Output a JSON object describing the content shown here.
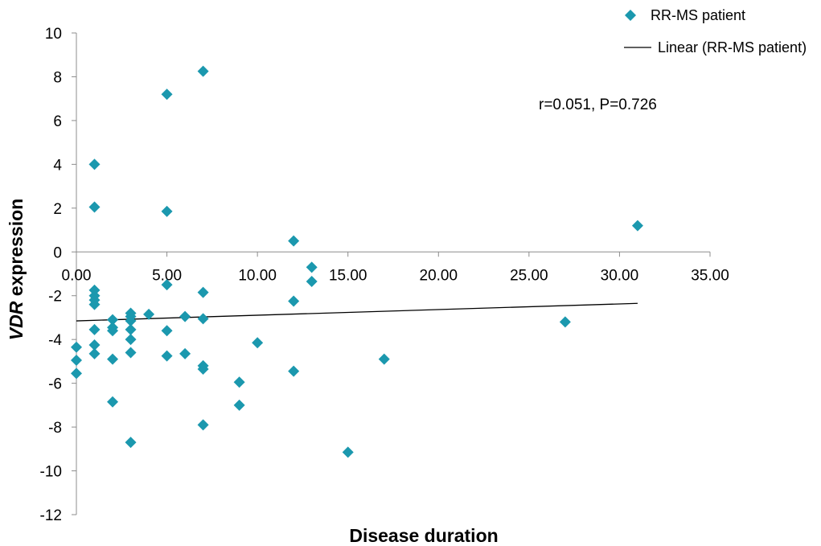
{
  "chart_data": {
    "type": "scatter",
    "xlabel": "Disease duration",
    "ylabel_italic": "VDR",
    "ylabel_rest": " expression",
    "xlim": [
      0,
      35
    ],
    "ylim": [
      -12,
      10
    ],
    "x_ticks": [
      0,
      5,
      10,
      15,
      20,
      25,
      30,
      35
    ],
    "x_tick_labels": [
      "0.00",
      "5.00",
      "10.00",
      "15.00",
      "20.00",
      "25.00",
      "30.00",
      "35.00"
    ],
    "y_ticks": [
      10,
      8,
      6,
      4,
      2,
      0,
      -2,
      -4,
      -6,
      -8,
      -10,
      -12
    ],
    "y_tick_labels": [
      "10",
      "8",
      "6",
      "4",
      "2",
      "0",
      "-2",
      "-4",
      "-6",
      "-8",
      "-10",
      "-12"
    ],
    "grid": false,
    "legend_position": "top-right",
    "annotation": "r=0.051,  P=0.726",
    "series": [
      {
        "name": "RR-MS patient",
        "color": "#1B98AE",
        "marker": "diamond",
        "points": [
          [
            0,
            -4.35
          ],
          [
            0,
            -4.95
          ],
          [
            0,
            -5.55
          ],
          [
            1,
            4.0
          ],
          [
            1,
            2.05
          ],
          [
            1,
            -1.75
          ],
          [
            1,
            -2.0
          ],
          [
            1,
            -2.2
          ],
          [
            1,
            -2.4
          ],
          [
            1,
            -3.55
          ],
          [
            1,
            -4.25
          ],
          [
            1,
            -4.65
          ],
          [
            2,
            -3.1
          ],
          [
            2,
            -3.45
          ],
          [
            2,
            -3.6
          ],
          [
            2,
            -4.9
          ],
          [
            2,
            -6.85
          ],
          [
            3,
            -2.8
          ],
          [
            3,
            -2.95
          ],
          [
            3,
            -3.15
          ],
          [
            3,
            -3.55
          ],
          [
            3,
            -4.0
          ],
          [
            3,
            -4.6
          ],
          [
            3,
            -8.7
          ],
          [
            4,
            -2.85
          ],
          [
            5,
            7.2
          ],
          [
            5,
            1.85
          ],
          [
            5,
            -1.5
          ],
          [
            5,
            -3.6
          ],
          [
            5,
            -4.75
          ],
          [
            6,
            -2.95
          ],
          [
            6,
            -4.65
          ],
          [
            7,
            8.25
          ],
          [
            7,
            -1.85
          ],
          [
            7,
            -3.05
          ],
          [
            7,
            -5.2
          ],
          [
            7,
            -5.35
          ],
          [
            7,
            -7.9
          ],
          [
            9,
            -5.95
          ],
          [
            9,
            -7.0
          ],
          [
            10,
            -4.15
          ],
          [
            12,
            0.5
          ],
          [
            12,
            -2.25
          ],
          [
            12,
            -5.45
          ],
          [
            13,
            -0.7
          ],
          [
            13,
            -1.35
          ],
          [
            15,
            -9.15
          ],
          [
            17,
            -4.9
          ],
          [
            27,
            -3.2
          ],
          [
            31,
            1.2
          ]
        ]
      },
      {
        "name": "Linear (RR-MS patient)",
        "color": "#000000",
        "type": "line",
        "points": [
          [
            0,
            -3.15
          ],
          [
            31,
            -2.35
          ]
        ]
      }
    ]
  }
}
